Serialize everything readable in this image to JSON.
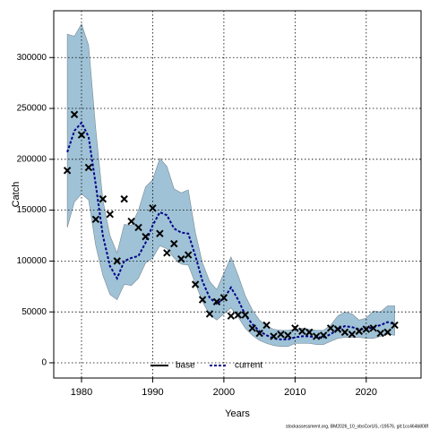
{
  "chart_data": {
    "type": "line",
    "x_label": "Years",
    "y_label": "Catch",
    "footer": "stockassessment.org, BM2026_10_obsCorUS, r19576, git:1cc464b808f",
    "x": [
      1978,
      1979,
      1980,
      1981,
      1982,
      1983,
      1984,
      1985,
      1986,
      1987,
      1988,
      1989,
      1990,
      1991,
      1992,
      1993,
      1994,
      1995,
      1996,
      1997,
      1998,
      1999,
      2000,
      2001,
      2002,
      2003,
      2004,
      2005,
      2006,
      2007,
      2008,
      2009,
      2010,
      2011,
      2012,
      2013,
      2014,
      2015,
      2016,
      2017,
      2018,
      2019,
      2020,
      2021,
      2022,
      2023,
      2024
    ],
    "series": [
      {
        "name": "current",
        "color": "#00008b",
        "values": [
          207000,
          228000,
          236000,
          222000,
          175000,
          125000,
          95000,
          83000,
          100000,
          103000,
          105000,
          118000,
          135000,
          148000,
          145000,
          132000,
          128000,
          127000,
          105000,
          80000,
          64000,
          58000,
          63000,
          74000,
          62000,
          47000,
          38000,
          31000,
          27000,
          24000,
          23000,
          23000,
          25000,
          26000,
          26000,
          25000,
          25000,
          28000,
          33000,
          36000,
          35000,
          33000,
          33000,
          35000,
          37000,
          40000,
          38000
        ]
      }
    ],
    "band": {
      "color": "#9fc2d6",
      "upper": [
        323000,
        321000,
        333000,
        312000,
        230000,
        160000,
        125000,
        108000,
        136000,
        135000,
        150000,
        173000,
        180000,
        201000,
        193000,
        171000,
        167000,
        170000,
        128000,
        98000,
        80000,
        72000,
        88000,
        104000,
        86000,
        66000,
        52000,
        42000,
        36000,
        33000,
        32000,
        32000,
        33000,
        34000,
        33000,
        32000,
        32000,
        37000,
        46000,
        50000,
        48000,
        42000,
        44000,
        51000,
        50000,
        56000,
        56000
      ],
      "lower": [
        133000,
        158000,
        166000,
        160000,
        115000,
        86000,
        67000,
        62000,
        77000,
        76000,
        83000,
        98000,
        103000,
        115000,
        112000,
        103000,
        97000,
        96000,
        78000,
        60000,
        47000,
        42000,
        48000,
        54000,
        45000,
        34000,
        27000,
        22000,
        19000,
        17000,
        16000,
        16000,
        19000,
        19000,
        19000,
        18000,
        18000,
        21000,
        24000,
        25000,
        25000,
        25000,
        24000,
        24000,
        26000,
        28000,
        27000
      ]
    },
    "observed": [
      189000,
      244000,
      224000,
      192000,
      141000,
      161000,
      146000,
      100000,
      161000,
      139000,
      133000,
      124000,
      152000,
      127000,
      108000,
      117000,
      102000,
      106000,
      77000,
      62000,
      48000,
      60000,
      64000,
      46000,
      47000,
      47000,
      34000,
      29000,
      37000,
      26000,
      28000,
      27000,
      34000,
      31000,
      30000,
      26000,
      27000,
      34000,
      33000,
      30000,
      28000,
      31000,
      33000,
      34000,
      29000,
      30000,
      37000
    ],
    "legend": [
      {
        "name": "base",
        "color": "#000000",
        "dash": false
      },
      {
        "name": "current",
        "color": "#00008b",
        "dash": true
      }
    ],
    "xlim": [
      1976.1,
      2027.7
    ],
    "ylim": [
      -15000,
      346000
    ],
    "xticks": [
      1980,
      1990,
      2000,
      2010,
      2020
    ],
    "yticks": [
      0,
      50000,
      100000,
      150000,
      200000,
      250000,
      300000
    ],
    "grid": true
  }
}
